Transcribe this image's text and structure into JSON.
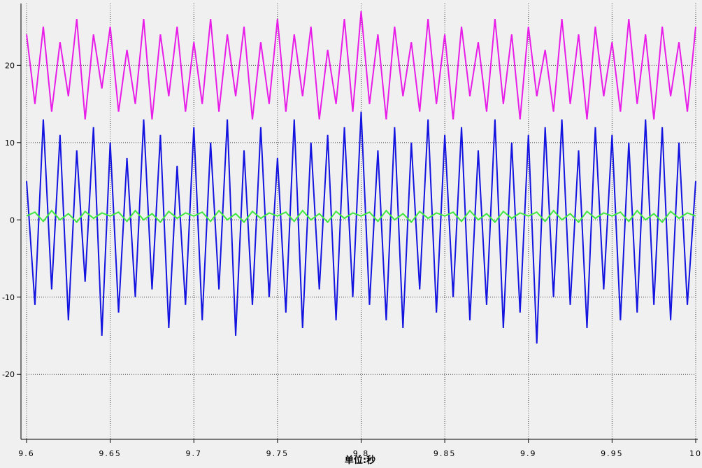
{
  "chart_data": {
    "type": "line",
    "x_label": "单位:秒",
    "x": [
      9.6,
      9.605,
      9.61,
      9.615,
      9.62,
      9.625,
      9.63,
      9.635,
      9.64,
      9.645,
      9.65,
      9.655,
      9.66,
      9.665,
      9.67,
      9.675,
      9.68,
      9.685,
      9.69,
      9.695,
      9.7,
      9.705,
      9.71,
      9.715,
      9.72,
      9.725,
      9.73,
      9.735,
      9.74,
      9.745,
      9.75,
      9.755,
      9.76,
      9.765,
      9.77,
      9.775,
      9.78,
      9.785,
      9.79,
      9.795,
      9.8,
      9.805,
      9.81,
      9.815,
      9.82,
      9.825,
      9.83,
      9.835,
      9.84,
      9.845,
      9.85,
      9.855,
      9.86,
      9.865,
      9.87,
      9.875,
      9.88,
      9.885,
      9.89,
      9.895,
      9.9,
      9.905,
      9.91,
      9.915,
      9.92,
      9.925,
      9.93,
      9.935,
      9.94,
      9.945,
      9.95,
      9.955,
      9.96,
      9.965,
      9.97,
      9.975,
      9.98,
      9.985,
      9.99,
      9.995,
      10
    ],
    "series": [
      {
        "color": "#e81ee8",
        "values": [
          24,
          15,
          25,
          14,
          23,
          16,
          26,
          13,
          24,
          17,
          25,
          14,
          22,
          15,
          26,
          13,
          24,
          16,
          25,
          14,
          23,
          15,
          26,
          14,
          24,
          16,
          25,
          13,
          23,
          15,
          26,
          14,
          24,
          16,
          25,
          13,
          22,
          15,
          26,
          14,
          27,
          15,
          24,
          13,
          25,
          16,
          23,
          14,
          26,
          15,
          24,
          13,
          25,
          16,
          23,
          14,
          26,
          15,
          24,
          13,
          25,
          16,
          22,
          14,
          26,
          15,
          24,
          13,
          25,
          16,
          23,
          14,
          26,
          15,
          24,
          13,
          25,
          16,
          23,
          14,
          25
        ]
      },
      {
        "color": "#1414e0",
        "values": [
          5,
          -11,
          13,
          -9,
          11,
          -13,
          9,
          -8,
          12,
          -15,
          10,
          -12,
          8,
          -10,
          13,
          -9,
          11,
          -14,
          7,
          -11,
          12,
          -13,
          10,
          -9,
          13,
          -15,
          9,
          -11,
          12,
          -10,
          8,
          -12,
          13,
          -14,
          10,
          -9,
          11,
          -13,
          12,
          -10,
          14,
          -11,
          9,
          -13,
          12,
          -14,
          10,
          -9,
          13,
          -12,
          11,
          -10,
          12,
          -13,
          9,
          -11,
          13,
          -14,
          10,
          -12,
          11,
          -16,
          12,
          -10,
          13,
          -11,
          9,
          -14,
          12,
          -9,
          11,
          -13,
          10,
          -12,
          13,
          -11,
          12,
          -13,
          10,
          -11,
          5
        ]
      },
      {
        "color": "#3ee83e",
        "values": [
          0.5,
          1,
          -0.2,
          1.2,
          0,
          0.8,
          -0.3,
          1.1,
          0.2,
          0.9,
          0.5,
          1,
          -0.2,
          1.2,
          0,
          0.8,
          -0.3,
          1.1,
          0.2,
          0.9,
          0.5,
          1,
          -0.2,
          1.2,
          0,
          0.8,
          -0.3,
          1.1,
          0.2,
          0.9,
          0.5,
          1,
          -0.2,
          1.2,
          0,
          0.8,
          -0.3,
          1.1,
          0.2,
          0.9,
          0.5,
          1,
          -0.2,
          1.2,
          0,
          0.8,
          -0.3,
          1.1,
          0.2,
          0.9,
          0.5,
          1,
          -0.2,
          1.2,
          0,
          0.8,
          -0.3,
          1.1,
          0.2,
          0.9,
          0.5,
          1,
          -0.2,
          1.2,
          0,
          0.8,
          -0.3,
          1.1,
          0.2,
          0.9,
          0.5,
          1,
          -0.2,
          1.2,
          0,
          0.8,
          -0.3,
          1.1,
          0.2,
          0.9,
          0.5
        ]
      }
    ],
    "xlim": [
      9.6,
      10
    ],
    "xticks": [
      9.6,
      9.65,
      9.7,
      9.75,
      9.8,
      9.85,
      9.9,
      9.95,
      10
    ],
    "ylim": [
      -28.4,
      28
    ],
    "yticks": [
      -20,
      -10,
      0,
      10,
      20
    ],
    "grid": true
  }
}
